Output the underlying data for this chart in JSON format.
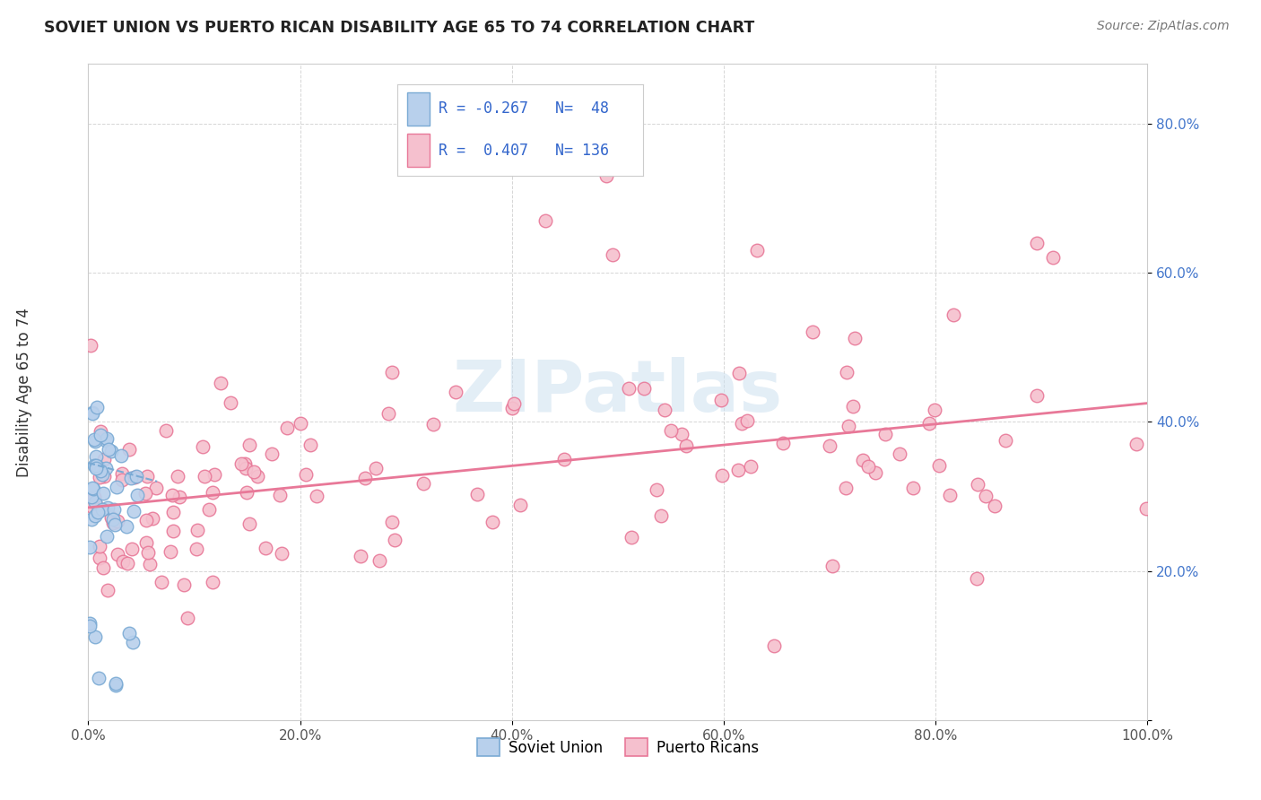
{
  "title": "SOVIET UNION VS PUERTO RICAN DISABILITY AGE 65 TO 74 CORRELATION CHART",
  "source": "Source: ZipAtlas.com",
  "ylabel": "Disability Age 65 to 74",
  "xlim": [
    0.0,
    1.0
  ],
  "ylim": [
    0.0,
    0.88
  ],
  "background_color": "#ffffff",
  "grid_color": "#cccccc",
  "soviet_color": "#b8d0ec",
  "soviet_edge": "#7aaad4",
  "puerto_color": "#f5c0ce",
  "puerto_edge": "#e87898",
  "soviet_R": -0.267,
  "soviet_N": 48,
  "puerto_R": 0.407,
  "puerto_N": 136,
  "legend_label_soviet": "Soviet Union",
  "legend_label_puerto": "Puerto Ricans",
  "soviet_trend_color": "#7aaad4",
  "puerto_trend_color": "#e87898",
  "ytick_color": "#4477cc",
  "xtick_color": "#555555",
  "watermark": "ZIPatlas",
  "watermark_color": "#cce0f0"
}
